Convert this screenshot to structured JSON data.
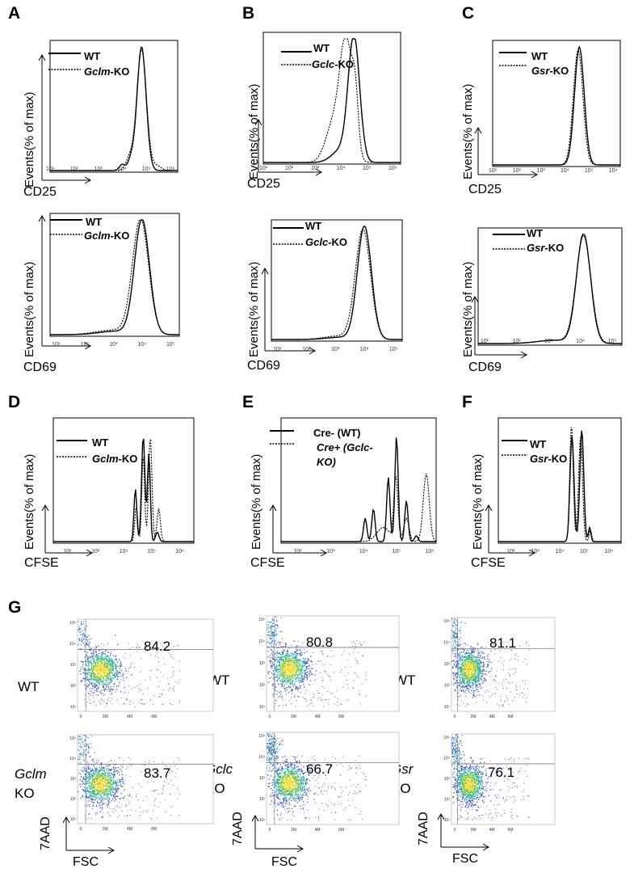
{
  "panels": {
    "A": "A",
    "B": "B",
    "C": "C",
    "D": "D",
    "E": "E",
    "F": "F",
    "G": "G"
  },
  "ylabel": "Events(% of max)",
  "xlabels": {
    "cd25": "CD25",
    "cd69": "CD69",
    "cfse": "CFSE",
    "fsc": "FSC",
    "aad": "7AAD"
  },
  "legends": {
    "wt": "WT",
    "gclm_ko": "Gclm-KO",
    "gclm": "Gclm",
    "ko_suffix": "-KO",
    "gclc": "Gclc",
    "gsr": "Gsr",
    "cre_minus": "Cre- (WT)",
    "cre_plus_line1": "Cre+ (Gclc-",
    "cre_plus_line2": "KO)"
  },
  "rowlabels": {
    "wt": "WT",
    "ko": "KO",
    "gclm": "Gclm",
    "gclc": "Gclc",
    "gsr": "Gsr"
  },
  "tick_text": {
    "e1": "10¹",
    "e2": "10²",
    "e3": "10³",
    "e4": "10⁴",
    "e5": "10⁵",
    "e6": "10⁶",
    "fsc_ticks": [
      "0",
      "2M",
      "4M",
      "6M"
    ],
    "aad_ticks": [
      "10⁵",
      "10⁴",
      "10³",
      "10²",
      "10¹"
    ]
  },
  "percentages": {
    "gclm_wt": "84.2",
    "gclc_wt": "80.8",
    "gsr_wt": "81.1",
    "gclm_ko": "83.7",
    "gclc_ko": "66.7",
    "gsr_ko": "76.1"
  },
  "chart_data": [
    {
      "type": "histogram",
      "panel": "A",
      "marker": "CD25",
      "series": [
        {
          "name": "WT",
          "peak_log10": 4.8
        },
        {
          "name": "Gclm-KO",
          "peak_log10": 4.8
        }
      ]
    },
    {
      "type": "histogram",
      "panel": "A",
      "marker": "CD69",
      "series": [
        {
          "name": "WT",
          "peak_log10": 4.0
        },
        {
          "name": "Gclm-KO",
          "peak_log10": 3.95
        }
      ]
    },
    {
      "type": "histogram",
      "panel": "B",
      "marker": "CD25",
      "series": [
        {
          "name": "WT",
          "peak_log10": 4.5
        },
        {
          "name": "Gclc-KO",
          "peak_log10": 4.2
        }
      ]
    },
    {
      "type": "histogram",
      "panel": "B",
      "marker": "CD69",
      "series": [
        {
          "name": "WT",
          "peak_log10": 4.0
        },
        {
          "name": "Gclc-KO",
          "peak_log10": 3.95
        }
      ]
    },
    {
      "type": "histogram",
      "panel": "C",
      "marker": "CD25",
      "series": [
        {
          "name": "WT",
          "peak_log10": 4.6
        },
        {
          "name": "Gsr-KO",
          "peak_log10": 4.55
        }
      ]
    },
    {
      "type": "histogram",
      "panel": "C",
      "marker": "CD69",
      "series": [
        {
          "name": "WT",
          "peak_log10": 4.1
        },
        {
          "name": "Gsr-KO",
          "peak_log10": 4.1
        }
      ]
    },
    {
      "type": "histogram",
      "panel": "D",
      "marker": "CFSE",
      "series": [
        {
          "name": "WT",
          "peak_log10": 4.7
        },
        {
          "name": "Gclm-KO",
          "peak_log10": 4.95
        }
      ]
    },
    {
      "type": "histogram",
      "panel": "E",
      "marker": "CFSE",
      "series": [
        {
          "name": "Cre- (WT)",
          "peak_log10": 5.0
        },
        {
          "name": "Cre+ (Gclc-KO)",
          "peak_log10": 5.9
        }
      ]
    },
    {
      "type": "histogram",
      "panel": "F",
      "marker": "CFSE",
      "series": [
        {
          "name": "WT",
          "peak_log10": 4.9
        },
        {
          "name": "Gsr-KO",
          "peak_log10": 4.85
        }
      ]
    },
    {
      "type": "scatter",
      "panel": "G",
      "x": "FSC",
      "y": "7AAD",
      "gates": {
        "Gclm WT": 84.2,
        "Gclc WT": 80.8,
        "Gsr WT": 81.1,
        "Gclm KO": 83.7,
        "Gclc KO": 66.7,
        "Gsr KO": 76.1
      }
    }
  ]
}
